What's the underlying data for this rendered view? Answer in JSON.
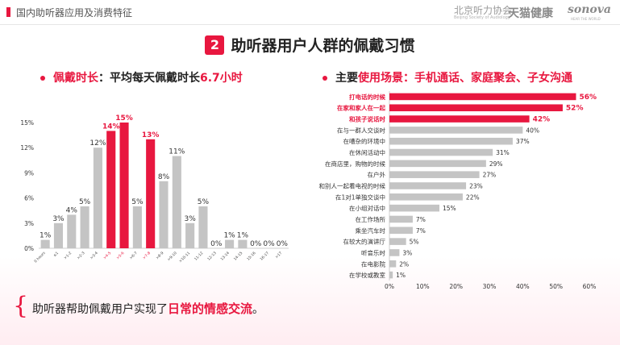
{
  "header": {
    "title": "国内助听器应用及消费特征",
    "logo_primary": "北京听力协会",
    "logo_primary_sub": "Beijing Society of Audiology",
    "logo_secondary": "天猫健康",
    "logo_tertiary": "sonova",
    "logo_tertiary_sub": "HEAR THE WORLD"
  },
  "section": {
    "number": "2",
    "title": "助听器用户人群的佩戴习惯"
  },
  "left_panel": {
    "label_highlight": "佩戴时长",
    "label_rest": "：平均每天佩戴时长",
    "label_value": "6.7小时"
  },
  "right_panel": {
    "label_pre": "主要",
    "label_highlight": "使用场景：手机通话、家庭聚会、子女沟通"
  },
  "footer": {
    "text_pre": "助听器帮助佩戴用户实现了",
    "text_highlight": "日常的情感交流",
    "text_post": "。"
  },
  "colors": {
    "accent": "#e8173f",
    "bar_gray": "#c4c4c4",
    "bar_gray_dark": "#b3b3b3"
  },
  "chart_data": [
    {
      "type": "bar",
      "orientation": "vertical",
      "categories": [
        "0 hours",
        "≤1",
        ">1-2",
        ">2-3",
        ">3-4",
        ">4-5",
        ">5-6",
        ">6-7",
        ">7-8",
        ">8-9",
        ">9-10",
        ">10-11",
        "11-12",
        "12-13",
        "13-14",
        "14-15",
        "15-16",
        "16-17",
        ">17"
      ],
      "values": [
        1,
        3,
        4,
        5,
        12,
        14,
        15,
        5,
        13,
        8,
        11,
        3,
        5,
        0,
        1,
        1,
        0,
        0,
        0
      ],
      "value_labels": [
        "1%",
        "3%",
        "4%",
        "5%",
        "12%",
        "14%",
        "15%",
        "5%",
        "13%",
        "8%",
        "11%",
        "3%",
        "5%",
        "0%",
        "1%",
        "1%",
        "0%",
        "0%",
        "0%"
      ],
      "highlight": [
        5,
        6,
        8
      ],
      "ylim": [
        0,
        15
      ],
      "yticks": [
        "0%",
        "3%",
        "6%",
        "9%",
        "12%",
        "15%"
      ],
      "ytick_values": [
        0,
        3,
        6,
        9,
        12,
        15
      ]
    },
    {
      "type": "bar",
      "orientation": "horizontal",
      "categories": [
        "打电话的时候",
        "在家和家人在一起",
        "和孩子说话时",
        "在与一群人交谈时",
        "在嘈杂的环境中",
        "在休闲活动中",
        "在商店里，购物的时候",
        "在户外",
        "和别人一起看电视的时候",
        "在1对1单独交谈中",
        "在小组对话中",
        "在工作场所",
        "乘坐汽车时",
        "在较大的演讲厅",
        "听音乐时",
        "在电影院",
        "在学校或教室"
      ],
      "values": [
        56,
        52,
        42,
        40,
        37,
        31,
        29,
        27,
        23,
        22,
        15,
        7,
        7,
        5,
        3,
        2,
        1
      ],
      "value_labels": [
        "56%",
        "52%",
        "42%",
        "40%",
        "37%",
        "31%",
        "29%",
        "27%",
        "23%",
        "22%",
        "15%",
        "7%",
        "7%",
        "5%",
        "3%",
        "2%",
        "1%"
      ],
      "highlight": [
        0,
        1,
        2
      ],
      "xlim": [
        0,
        60
      ],
      "xticks": [
        "0%",
        "10%",
        "20%",
        "30%",
        "40%",
        "50%",
        "60%"
      ],
      "xtick_values": [
        0,
        10,
        20,
        30,
        40,
        50,
        60
      ]
    }
  ]
}
